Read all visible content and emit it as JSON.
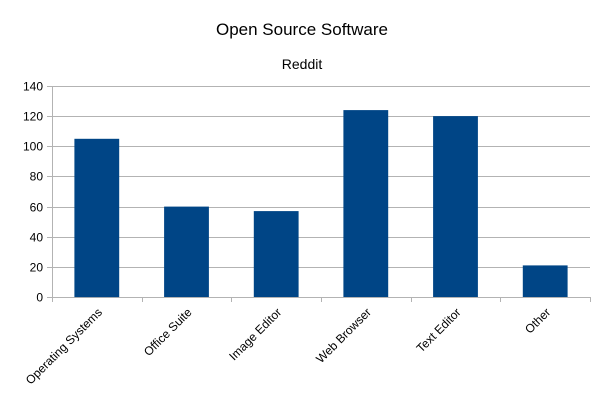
{
  "chart_data": {
    "type": "bar",
    "title": "Open Source Software",
    "subtitle": "Reddit",
    "xlabel": "",
    "ylabel": "",
    "categories": [
      "Operating Systems",
      "Office Suite",
      "Image Editor",
      "Web Browser",
      "Text Editor",
      "Other"
    ],
    "values": [
      105,
      60,
      57,
      124,
      120,
      21
    ],
    "ylim": [
      0,
      140
    ],
    "yticks": [
      0,
      20,
      40,
      60,
      80,
      100,
      120,
      140
    ],
    "grid": true,
    "legend": "none",
    "bar_color": "#004586",
    "grid_color": "#b3b3b3",
    "axis_color": "#b3b3b3"
  }
}
